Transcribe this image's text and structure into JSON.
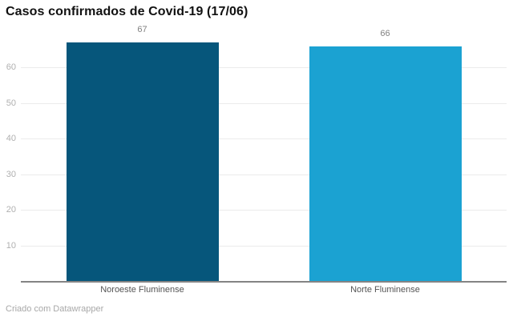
{
  "header": {
    "title": "Casos confirmados de Covid-19 (17/06)"
  },
  "footer": {
    "credit": "Criado com Datawrapper"
  },
  "colors": {
    "title": "#111111",
    "gridline": "#ebebeb",
    "baseline": "#848484",
    "tick_label": "#b0b0b0",
    "value_label": "#808080",
    "category_label": "#545454",
    "footer_text": "#a8a8a8",
    "bar_noroeste": "#06567B",
    "bar_norte": "#1BA2D2"
  },
  "chart_data": {
    "type": "bar",
    "title": "Casos confirmados de Covid-19 (17/06)",
    "categories": [
      "Noroeste Fluminense",
      "Norte Fluminense"
    ],
    "values": [
      67,
      66
    ],
    "value_labels": [
      "67",
      "66"
    ],
    "bar_colors": [
      "#06567B",
      "#1BA2D2"
    ],
    "xlabel": "",
    "ylabel": "",
    "ylim": [
      0,
      67
    ],
    "yticks": [
      10,
      20,
      30,
      40,
      50,
      60
    ],
    "grid": "horizontal-only",
    "legend": "none",
    "credit": "Criado com Datawrapper"
  }
}
